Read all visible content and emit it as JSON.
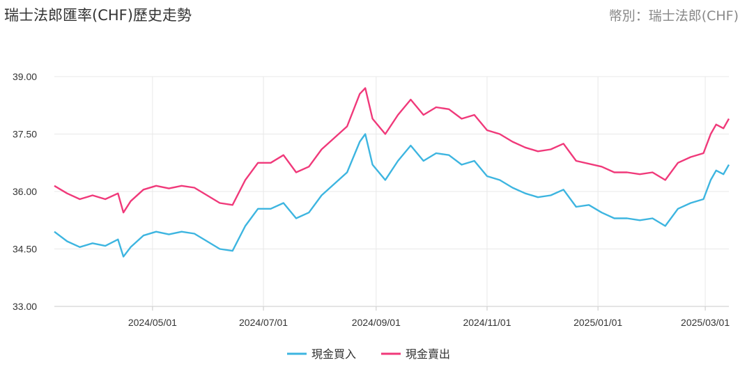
{
  "header": {
    "title": "瑞士法郎匯率(CHF)歷史走勢",
    "currency_label": "幣別：瑞士法郎(CHF)"
  },
  "colors": {
    "buy": "#3db5e0",
    "sell": "#f0397a",
    "grid": "#e8e8e8",
    "axis": "#c8c8c8"
  },
  "chart_data": {
    "type": "line",
    "title": "瑞士法郎匯率(CHF)歷史走勢",
    "x_tick_labels": [
      "2024/05/01",
      "2024/07/01",
      "2024/09/01",
      "2024/11/01",
      "2025/01/01",
      "2025/03/01"
    ],
    "x_range": [
      "2024-03-08",
      "2025-03-14"
    ],
    "y_tick_labels": [
      "39.00",
      "37.50",
      "36.00",
      "34.50",
      "33.00"
    ],
    "ylim": [
      33.0,
      39.0
    ],
    "grid": true,
    "legend_position": "bottom",
    "series": [
      {
        "name": "現金買入",
        "color": "#3db5e0",
        "points": [
          [
            "2024-03-08",
            34.95
          ],
          [
            "2024-03-15",
            34.7
          ],
          [
            "2024-03-22",
            34.55
          ],
          [
            "2024-03-29",
            34.65
          ],
          [
            "2024-04-05",
            34.58
          ],
          [
            "2024-04-12",
            34.75
          ],
          [
            "2024-04-15",
            34.3
          ],
          [
            "2024-04-19",
            34.55
          ],
          [
            "2024-04-26",
            34.85
          ],
          [
            "2024-05-03",
            34.95
          ],
          [
            "2024-05-10",
            34.88
          ],
          [
            "2024-05-17",
            34.95
          ],
          [
            "2024-05-24",
            34.9
          ],
          [
            "2024-05-31",
            34.7
          ],
          [
            "2024-06-07",
            34.5
          ],
          [
            "2024-06-14",
            34.45
          ],
          [
            "2024-06-21",
            35.1
          ],
          [
            "2024-06-28",
            35.55
          ],
          [
            "2024-07-05",
            35.55
          ],
          [
            "2024-07-12",
            35.7
          ],
          [
            "2024-07-19",
            35.3
          ],
          [
            "2024-07-26",
            35.45
          ],
          [
            "2024-08-02",
            35.9
          ],
          [
            "2024-08-09",
            36.2
          ],
          [
            "2024-08-16",
            36.5
          ],
          [
            "2024-08-23",
            37.3
          ],
          [
            "2024-08-26",
            37.5
          ],
          [
            "2024-08-30",
            36.7
          ],
          [
            "2024-09-06",
            36.3
          ],
          [
            "2024-09-13",
            36.8
          ],
          [
            "2024-09-20",
            37.2
          ],
          [
            "2024-09-27",
            36.8
          ],
          [
            "2024-10-04",
            37.0
          ],
          [
            "2024-10-11",
            36.95
          ],
          [
            "2024-10-18",
            36.7
          ],
          [
            "2024-10-25",
            36.8
          ],
          [
            "2024-11-01",
            36.4
          ],
          [
            "2024-11-08",
            36.3
          ],
          [
            "2024-11-15",
            36.1
          ],
          [
            "2024-11-22",
            35.95
          ],
          [
            "2024-11-29",
            35.85
          ],
          [
            "2024-12-06",
            35.9
          ],
          [
            "2024-12-13",
            36.05
          ],
          [
            "2024-12-20",
            35.6
          ],
          [
            "2024-12-27",
            35.65
          ],
          [
            "2025-01-03",
            35.45
          ],
          [
            "2025-01-10",
            35.3
          ],
          [
            "2025-01-17",
            35.3
          ],
          [
            "2025-01-24",
            35.25
          ],
          [
            "2025-01-31",
            35.3
          ],
          [
            "2025-02-07",
            35.1
          ],
          [
            "2025-02-14",
            35.55
          ],
          [
            "2025-02-21",
            35.7
          ],
          [
            "2025-02-28",
            35.8
          ],
          [
            "2025-03-04",
            36.3
          ],
          [
            "2025-03-07",
            36.55
          ],
          [
            "2025-03-11",
            36.45
          ],
          [
            "2025-03-14",
            36.7
          ]
        ]
      },
      {
        "name": "現金賣出",
        "color": "#f0397a",
        "points": [
          [
            "2024-03-08",
            36.15
          ],
          [
            "2024-03-15",
            35.95
          ],
          [
            "2024-03-22",
            35.8
          ],
          [
            "2024-03-29",
            35.9
          ],
          [
            "2024-04-05",
            35.8
          ],
          [
            "2024-04-12",
            35.95
          ],
          [
            "2024-04-15",
            35.45
          ],
          [
            "2024-04-19",
            35.75
          ],
          [
            "2024-04-26",
            36.05
          ],
          [
            "2024-05-03",
            36.15
          ],
          [
            "2024-05-10",
            36.08
          ],
          [
            "2024-05-17",
            36.15
          ],
          [
            "2024-05-24",
            36.1
          ],
          [
            "2024-05-31",
            35.9
          ],
          [
            "2024-06-07",
            35.7
          ],
          [
            "2024-06-14",
            35.65
          ],
          [
            "2024-06-21",
            36.3
          ],
          [
            "2024-06-28",
            36.75
          ],
          [
            "2024-07-05",
            36.75
          ],
          [
            "2024-07-12",
            36.95
          ],
          [
            "2024-07-19",
            36.5
          ],
          [
            "2024-07-26",
            36.65
          ],
          [
            "2024-08-02",
            37.1
          ],
          [
            "2024-08-09",
            37.4
          ],
          [
            "2024-08-16",
            37.7
          ],
          [
            "2024-08-23",
            38.55
          ],
          [
            "2024-08-26",
            38.7
          ],
          [
            "2024-08-30",
            37.9
          ],
          [
            "2024-09-06",
            37.5
          ],
          [
            "2024-09-13",
            38.0
          ],
          [
            "2024-09-20",
            38.4
          ],
          [
            "2024-09-27",
            38.0
          ],
          [
            "2024-10-04",
            38.2
          ],
          [
            "2024-10-11",
            38.15
          ],
          [
            "2024-10-18",
            37.9
          ],
          [
            "2024-10-25",
            38.0
          ],
          [
            "2024-11-01",
            37.6
          ],
          [
            "2024-11-08",
            37.5
          ],
          [
            "2024-11-15",
            37.3
          ],
          [
            "2024-11-22",
            37.15
          ],
          [
            "2024-11-29",
            37.05
          ],
          [
            "2024-12-06",
            37.1
          ],
          [
            "2024-12-13",
            37.25
          ],
          [
            "2024-12-20",
            36.8
          ],
          [
            "2025-01-03",
            36.65
          ],
          [
            "2025-01-10",
            36.5
          ],
          [
            "2025-01-17",
            36.5
          ],
          [
            "2025-01-24",
            36.45
          ],
          [
            "2025-01-31",
            36.5
          ],
          [
            "2025-02-07",
            36.3
          ],
          [
            "2025-02-14",
            36.75
          ],
          [
            "2025-02-21",
            36.9
          ],
          [
            "2025-02-28",
            37.0
          ],
          [
            "2025-03-04",
            37.5
          ],
          [
            "2025-03-07",
            37.75
          ],
          [
            "2025-03-11",
            37.65
          ],
          [
            "2025-03-14",
            37.9
          ]
        ]
      }
    ]
  }
}
